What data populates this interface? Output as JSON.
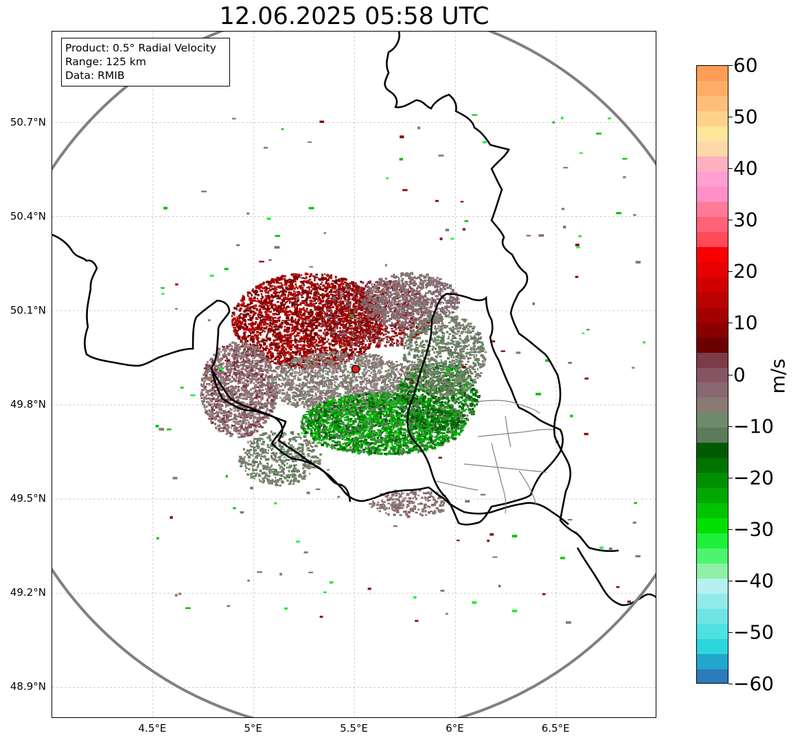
{
  "title": "12.06.2025 05:58 UTC",
  "info": {
    "product": "Product: 0.5° Radial Velocity",
    "range": "Range: 125 km",
    "data": "Data: RMIB"
  },
  "map": {
    "lat_ticks": [
      {
        "value": 50.7,
        "label": "50.7°N"
      },
      {
        "value": 50.4,
        "label": "50.4°N"
      },
      {
        "value": 50.1,
        "label": "50.1°N"
      },
      {
        "value": 49.8,
        "label": "49.8°N"
      },
      {
        "value": 49.5,
        "label": "49.5°N"
      },
      {
        "value": 49.2,
        "label": "49.2°N"
      },
      {
        "value": 48.9,
        "label": "48.9°N"
      }
    ],
    "lon_ticks": [
      {
        "value": 4.5,
        "label": "4.5°E"
      },
      {
        "value": 5.0,
        "label": "5°E"
      },
      {
        "value": 5.5,
        "label": "5.5°E"
      },
      {
        "value": 6.0,
        "label": "6°E"
      },
      {
        "value": 6.5,
        "label": "6.5°E"
      }
    ],
    "extent": {
      "lon": [
        4.0,
        7.0
      ],
      "lat": [
        48.8,
        50.99
      ]
    },
    "radar_site": {
      "lon": 5.505,
      "lat": 49.914
    },
    "range_circle_color": "#808080",
    "radar_marker_color": "#e21b1b"
  },
  "colorbar": {
    "unit": "m/s",
    "min": -60,
    "max": 60,
    "ticks": [
      {
        "value": 60,
        "label": "60"
      },
      {
        "value": 50,
        "label": "50"
      },
      {
        "value": 40,
        "label": "40"
      },
      {
        "value": 30,
        "label": "30"
      },
      {
        "value": 20,
        "label": "20"
      },
      {
        "value": 10,
        "label": "10"
      },
      {
        "value": 0,
        "label": "0"
      },
      {
        "value": -10,
        "label": "−10"
      },
      {
        "value": -20,
        "label": "−20"
      },
      {
        "value": -30,
        "label": "−30"
      },
      {
        "value": -40,
        "label": "−40"
      },
      {
        "value": -50,
        "label": "−50"
      },
      {
        "value": -60,
        "label": "−60"
      }
    ],
    "stops": [
      "#2b7bbd",
      "#22a6cb",
      "#2bd6dc",
      "#4fe0e0",
      "#6fe4e4",
      "#91eaea",
      "#b6f0f0",
      "#8ef0a5",
      "#4df56d",
      "#1ef03a",
      "#00e000",
      "#00c400",
      "#00a800",
      "#008f00",
      "#007300",
      "#005a00",
      "#5c7b5a",
      "#6f8a6a",
      "#8a7a74",
      "#8a6872",
      "#865562",
      "#7a3c46",
      "#6b0000",
      "#8a0000",
      "#a40000",
      "#bb0000",
      "#d10000",
      "#e60000",
      "#fa0000",
      "#ff4a57",
      "#ff6277",
      "#ff7b98",
      "#ff8fc7",
      "#ff9fd2",
      "#ffb0c0",
      "#ffd7a8",
      "#ffe79a",
      "#ffd18a",
      "#ffbf7a",
      "#ffad66",
      "#ff9c55"
    ]
  }
}
